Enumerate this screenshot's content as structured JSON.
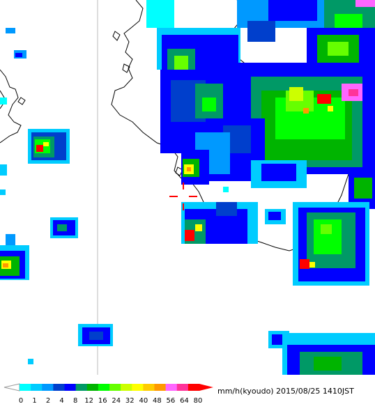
{
  "legend": {
    "unit": "mm/h(kyoudo)",
    "timestamp": "2015/08/25 1410JST",
    "colors": [
      "#00ffff",
      "#00ccff",
      "#0099ff",
      "#003fcc",
      "#0000ff",
      "#009966",
      "#00b400",
      "#00ff00",
      "#66ff00",
      "#ccff00",
      "#ffff00",
      "#ffcc00",
      "#ff9900",
      "#ff66ff",
      "#ff3399",
      "#ff0000"
    ],
    "ticks": [
      "0",
      "1",
      "2",
      "4",
      "8",
      "12",
      "16",
      "24",
      "32",
      "40",
      "48",
      "56",
      "64",
      "80"
    ]
  }
}
